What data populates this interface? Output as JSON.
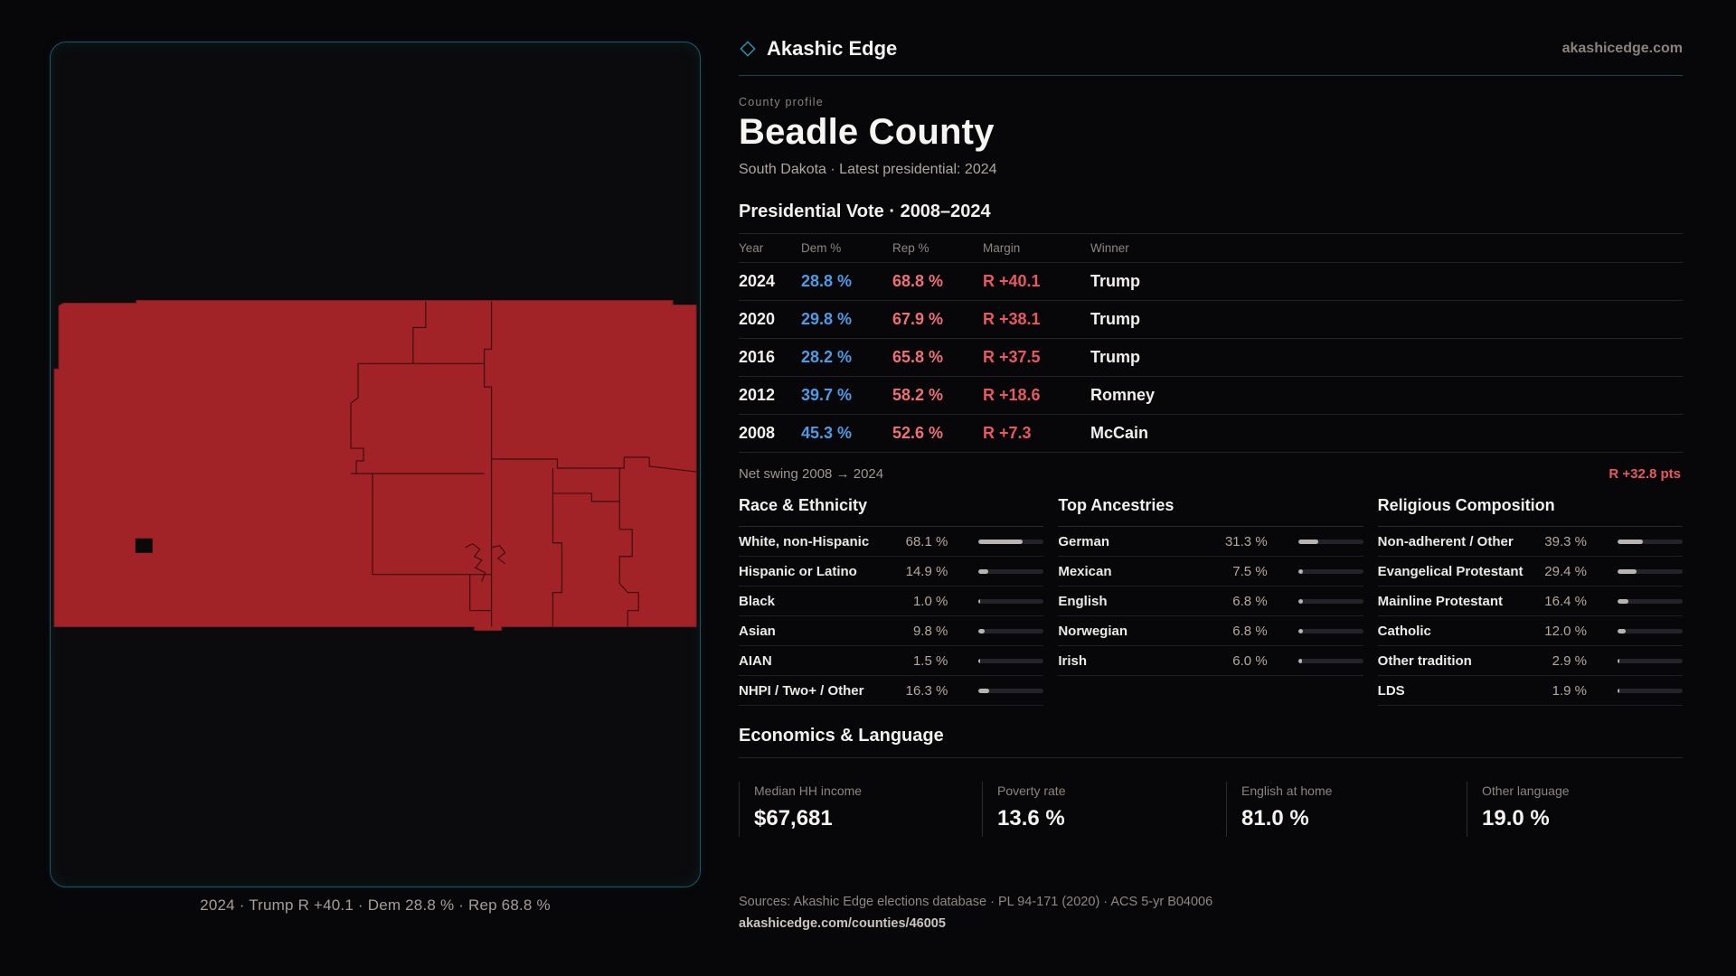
{
  "brand": {
    "name": "Akashic Edge",
    "domain": "akashicedge.com"
  },
  "profile": {
    "eyebrow": "County profile",
    "title": "Beadle County",
    "subtitle": "South Dakota · Latest presidential: 2024"
  },
  "vote_table": {
    "title": "Presidential Vote · 2008–2024",
    "columns": [
      "Year",
      "Dem %",
      "Rep %",
      "Margin",
      "Winner"
    ],
    "rows": [
      {
        "year": "2024",
        "dem": "28.8 %",
        "rep": "68.8 %",
        "margin": "R +40.1",
        "winner": "Trump"
      },
      {
        "year": "2020",
        "dem": "29.8 %",
        "rep": "67.9 %",
        "margin": "R +38.1",
        "winner": "Trump"
      },
      {
        "year": "2016",
        "dem": "28.2 %",
        "rep": "65.8 %",
        "margin": "R +37.5",
        "winner": "Trump"
      },
      {
        "year": "2012",
        "dem": "39.7 %",
        "rep": "58.2 %",
        "margin": "R +18.6",
        "winner": "Romney"
      },
      {
        "year": "2008",
        "dem": "45.3 %",
        "rep": "52.6 %",
        "margin": "R +7.3",
        "winner": "McCain"
      }
    ]
  },
  "net_swing": {
    "label": "Net swing 2008 → 2024",
    "value": "R +32.8 pts"
  },
  "demographics": [
    {
      "title": "Race & Ethnicity",
      "rows": [
        {
          "label": "White, non-Hispanic",
          "value": "68.1 %",
          "pct": 68.1
        },
        {
          "label": "Hispanic or Latino",
          "value": "14.9 %",
          "pct": 14.9
        },
        {
          "label": "Black",
          "value": "1.0 %",
          "pct": 1.0
        },
        {
          "label": "Asian",
          "value": "9.8 %",
          "pct": 9.8
        },
        {
          "label": "AIAN",
          "value": "1.5 %",
          "pct": 1.5
        },
        {
          "label": "NHPI / Two+ / Other",
          "value": "16.3 %",
          "pct": 16.3
        }
      ]
    },
    {
      "title": "Top Ancestries",
      "rows": [
        {
          "label": "German",
          "value": "31.3 %",
          "pct": 31.3
        },
        {
          "label": "Mexican",
          "value": "7.5 %",
          "pct": 7.5
        },
        {
          "label": "English",
          "value": "6.8 %",
          "pct": 6.8
        },
        {
          "label": "Norwegian",
          "value": "6.8 %",
          "pct": 6.8
        },
        {
          "label": "Irish",
          "value": "6.0 %",
          "pct": 6.0
        }
      ]
    },
    {
      "title": "Religious Composition",
      "rows": [
        {
          "label": "Non-adherent / Other",
          "value": "39.3 %",
          "pct": 39.3
        },
        {
          "label": "Evangelical Protestant",
          "value": "29.4 %",
          "pct": 29.4
        },
        {
          "label": "Mainline Protestant",
          "value": "16.4 %",
          "pct": 16.4
        },
        {
          "label": "Catholic",
          "value": "12.0 %",
          "pct": 12.0
        },
        {
          "label": "Other tradition",
          "value": "2.9 %",
          "pct": 2.9
        },
        {
          "label": "LDS",
          "value": "1.9 %",
          "pct": 1.9
        }
      ]
    }
  ],
  "economics": {
    "title": "Economics & Language",
    "stats": [
      {
        "label": "Median HH income",
        "value": "$67,681"
      },
      {
        "label": "Poverty rate",
        "value": "13.6 %"
      },
      {
        "label": "English at home",
        "value": "81.0 %"
      },
      {
        "label": "Other language",
        "value": "19.0 %"
      }
    ]
  },
  "footer": {
    "sources": "Sources: Akashic Edge elections database · PL 94-171 (2020) · ACS 5-yr B04006",
    "permalink": "akashicedge.com/counties/46005"
  },
  "map": {
    "caption": "2024 · Trump R +40.1 · Dem 28.8 % · Rep 68.8 %"
  },
  "colors": {
    "dem": "#4f9ae4",
    "rep": "#ee7076",
    "margin": "#e8595f",
    "accent_teal": "#2d96a8",
    "county_fill": "#a22327"
  }
}
